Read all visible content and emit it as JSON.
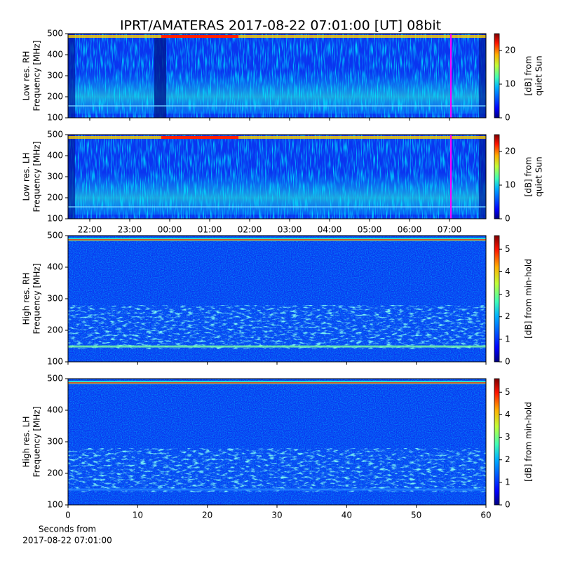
{
  "title": "IPRT/AMATERAS 2017-08-22 07:01:00 [UT]   08bit",
  "chart_data": [
    {
      "type": "heatmap",
      "ylabel": [
        "Low res. RH",
        "Frequency [MHz]"
      ],
      "ylim": [
        100,
        500
      ],
      "yticks": [
        100,
        200,
        300,
        400,
        500
      ],
      "colorbar": {
        "label": [
          "[dB] from",
          "quiet Sun"
        ],
        "lim": [
          0,
          25
        ],
        "ticks": [
          0,
          10,
          20
        ]
      }
    },
    {
      "type": "heatmap",
      "ylabel": [
        "Low res. LH",
        "Frequency [MHz]"
      ],
      "ylim": [
        100,
        500
      ],
      "yticks": [
        100,
        200,
        300,
        400,
        500
      ],
      "xticks": [
        "22:00",
        "23:00",
        "00:00",
        "01:00",
        "02:00",
        "03:00",
        "04:00",
        "05:00",
        "06:00",
        "07:00"
      ],
      "colorbar": {
        "label": [
          "[dB] from",
          "quiet Sun"
        ],
        "lim": [
          0,
          25
        ],
        "ticks": [
          0,
          10,
          20
        ]
      }
    },
    {
      "type": "heatmap",
      "ylabel": [
        "High res. RH",
        "Frequency [MHz]"
      ],
      "ylim": [
        100,
        500
      ],
      "yticks": [
        100,
        200,
        300,
        400,
        500
      ],
      "xlim": [
        0,
        60
      ],
      "colorbar": {
        "label": [
          "[dB] from min-hold"
        ],
        "lim": [
          0,
          5.6
        ],
        "ticks": [
          0,
          1,
          2,
          3,
          4,
          5
        ]
      }
    },
    {
      "type": "heatmap",
      "ylabel": [
        "High res. LH",
        "Frequency [MHz]"
      ],
      "ylim": [
        100,
        500
      ],
      "yticks": [
        100,
        200,
        300,
        400,
        500
      ],
      "xlim": [
        0,
        60
      ],
      "xticks": [
        0,
        10,
        20,
        30,
        40,
        50,
        60
      ],
      "xlabel": [
        "Seconds from",
        "2017-08-22 07:01:00"
      ],
      "colorbar": {
        "label": [
          "[dB] from min-hold"
        ],
        "lim": [
          0,
          5.6
        ],
        "ticks": [
          0,
          1,
          2,
          3,
          4,
          5
        ]
      }
    }
  ]
}
